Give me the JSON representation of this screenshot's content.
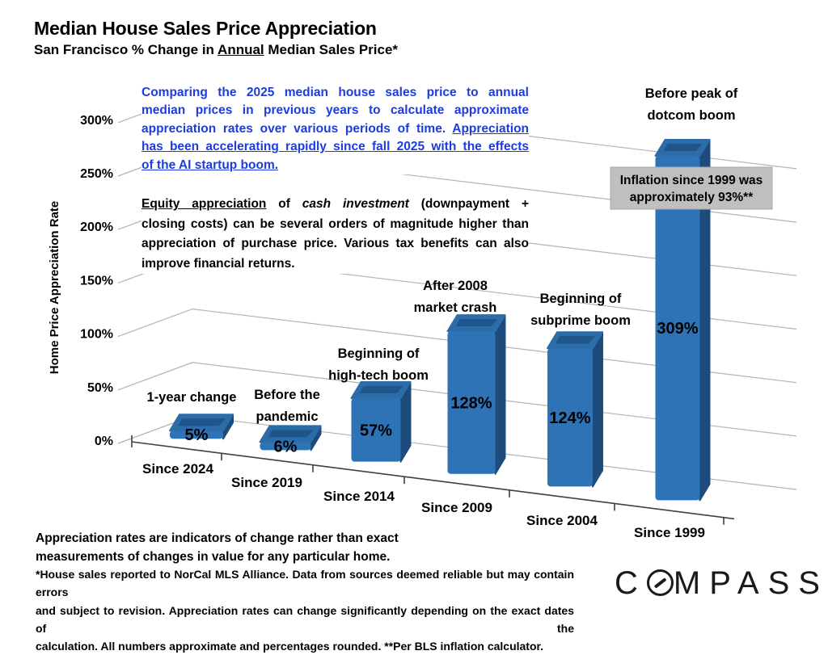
{
  "header": {
    "title": "Median House Sales Price Appreciation",
    "subtitle_pre": "San Francisco % Change in ",
    "subtitle_underlined": "Annual",
    "subtitle_post": " Median Sales Price*"
  },
  "chart_data": {
    "type": "bar",
    "style": "3d-perspective-columns",
    "title": "Median House Sales Price Appreciation",
    "subtitle": "San Francisco % Change in Annual Median Sales Price*",
    "xlabel": "",
    "ylabel": "Home Price Appreciation Rate",
    "ylim": [
      0,
      325
    ],
    "grid": true,
    "legend": false,
    "y_tick_labels": [
      "0%",
      "50%",
      "100%",
      "150%",
      "200%",
      "250%",
      "300%"
    ],
    "categories": [
      "Since 2024",
      "Since 2019",
      "Since 2014",
      "Since 2009",
      "Since 2004",
      "Since 1999"
    ],
    "values": [
      5,
      6,
      57,
      128,
      124,
      309
    ],
    "value_labels": [
      "5%",
      "6%",
      "57%",
      "128%",
      "124%",
      "309%"
    ],
    "bar_annotations": [
      [
        "1-year change"
      ],
      [
        "Before the",
        "pandemic"
      ],
      [
        "Beginning of",
        "high-tech boom"
      ],
      [
        "After 2008",
        "market crash"
      ],
      [
        "Beginning of",
        "subprime boom"
      ],
      [
        "Before peak of",
        "dotcom boom"
      ]
    ],
    "callout": {
      "line1": "Inflation since 1999 was",
      "line2": "approximately 93%**"
    }
  },
  "notes": {
    "blue": {
      "l1": "Comparing the 2025 median house sales price to annual",
      "l2": "median prices in previous years to calculate approximate",
      "l3_pre": "appreciation rates over various periods of time. ",
      "l3_u": "Appreciation",
      "l4": "has been accelerating rapidly since fall 2025 with the effects",
      "l5": "of the AI startup boom."
    },
    "equity": {
      "l1_u": "Equity appreciation",
      "l1_a": " of ",
      "l1_i": "cash investment",
      "l1_b": " (downpayment +",
      "l2": "closing costs) can be several orders of magnitude higher than",
      "l3": "appreciation of purchase price. Various tax benefits can also",
      "l4": "improve financial returns."
    },
    "disclaimer": {
      "line1": "Appreciation rates are indicators of change rather than exact",
      "line2": "measurements of changes in value for any particular home."
    },
    "footnote": {
      "line1": "*House sales reported to NorCal MLS Alliance. Data from sources deemed reliable but may contain errors",
      "line2": "and subject to revision. Appreciation rates can change significantly depending on the exact dates of the",
      "line3": "calculation. All numbers approximate and percentages rounded. **Per BLS inflation calculator."
    }
  },
  "footer": {
    "brand_c": "C",
    "brand_rest": "MPASS"
  },
  "colors": {
    "bar_front": "#2E73B5",
    "bar_side": "#1D4C7C",
    "bar_top": "#2B6CA9",
    "bar_top_inset": "#1F5589",
    "gridline": "#B3B3B3",
    "axis": "#3F3F3F",
    "callout_bg": "#BFBFBF",
    "callout_border": "#A9A9A9",
    "blue_text": "#1D3CE0",
    "text": "#000000"
  }
}
